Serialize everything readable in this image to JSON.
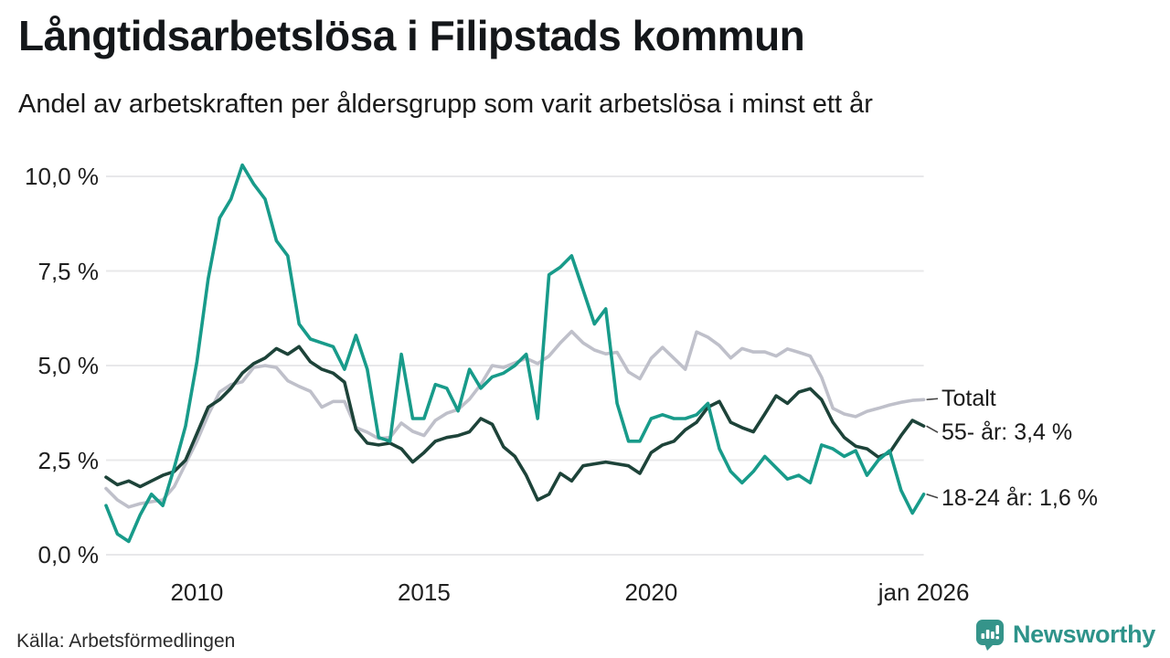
{
  "header": {
    "title": "Långtidsarbetslösa i Filipstads kommun",
    "subtitle": "Andel av arbetskraften per åldersgrupp som varit arbetslösa i minst ett år"
  },
  "footer": {
    "source": "Källa: Arbetsförmedlingen"
  },
  "branding": {
    "logo_text": "Newsworthy",
    "logo_color": "#35948a",
    "text_color": "#2e938a",
    "logo_icon": "bar-chart-speech-bubble-icon"
  },
  "chart_data": {
    "type": "line",
    "title": "Långtidsarbetslösa i Filipstads kommun",
    "subtitle": "Andel av arbetskraften per åldersgrupp som varit arbetslösa i minst ett år",
    "xlabel": "",
    "ylabel": "",
    "x_start_year": 2008,
    "x_step_years": 0.25,
    "x_end_year": 2026,
    "ylim": [
      0,
      10.5
    ],
    "grid": "horizontal",
    "grid_color": "#e8e8ea",
    "leader_color": "#444444",
    "legend_position": "end-of-line-labels",
    "y_ticks": [
      {
        "value": 0,
        "label": "0,0 %"
      },
      {
        "value": 2.5,
        "label": "2,5 %"
      },
      {
        "value": 5,
        "label": "5,0 %"
      },
      {
        "value": 7.5,
        "label": "7,5 %"
      },
      {
        "value": 10,
        "label": "10,0 %"
      }
    ],
    "x_ticks": [
      {
        "value": 2010,
        "label": "2010"
      },
      {
        "value": 2015,
        "label": "2015"
      },
      {
        "value": 2020,
        "label": "2020"
      },
      {
        "value": 2026,
        "label": "jan 2026"
      }
    ],
    "series": [
      {
        "name": "Totalt",
        "end_label": "Totalt",
        "end_value": 4.1,
        "color": "#bfc0ca",
        "values": [
          1.75,
          1.45,
          1.26,
          1.35,
          1.4,
          1.45,
          1.8,
          2.4,
          3.0,
          3.7,
          4.3,
          4.5,
          4.57,
          4.95,
          5.0,
          4.95,
          4.6,
          4.45,
          4.32,
          3.9,
          4.05,
          4.05,
          3.36,
          3.24,
          3.07,
          3.1,
          3.48,
          3.26,
          3.15,
          3.55,
          3.74,
          3.84,
          4.11,
          4.5,
          5.0,
          4.95,
          5.07,
          5.19,
          5.05,
          5.25,
          5.6,
          5.9,
          5.6,
          5.41,
          5.31,
          5.35,
          4.83,
          4.65,
          5.19,
          5.48,
          5.19,
          4.9,
          5.89,
          5.75,
          5.53,
          5.2,
          5.45,
          5.36,
          5.36,
          5.25,
          5.44,
          5.35,
          5.25,
          4.69,
          3.87,
          3.72,
          3.65,
          3.79,
          3.87,
          3.96,
          4.03,
          4.08,
          4.1
        ]
      },
      {
        "name": "55- år",
        "end_label": "55- år: 3,4 %",
        "end_value": 3.4,
        "color": "#1d4339",
        "values": [
          2.05,
          1.85,
          1.95,
          1.8,
          1.95,
          2.1,
          2.2,
          2.5,
          3.2,
          3.9,
          4.1,
          4.4,
          4.8,
          5.05,
          5.2,
          5.45,
          5.3,
          5.5,
          5.1,
          4.9,
          4.8,
          4.56,
          3.31,
          2.95,
          2.9,
          2.95,
          2.8,
          2.45,
          2.7,
          3.0,
          3.1,
          3.15,
          3.25,
          3.6,
          3.45,
          2.85,
          2.6,
          2.1,
          1.45,
          1.6,
          2.15,
          1.95,
          2.35,
          2.4,
          2.45,
          2.4,
          2.35,
          2.15,
          2.7,
          2.9,
          3.0,
          3.3,
          3.5,
          3.9,
          4.05,
          3.5,
          3.36,
          3.25,
          3.72,
          4.2,
          4.0,
          4.3,
          4.39,
          4.1,
          3.5,
          3.1,
          2.87,
          2.8,
          2.58,
          2.7,
          3.15,
          3.55,
          3.4
        ]
      },
      {
        "name": "18-24 år",
        "end_label": "18-24 år: 1,6 %",
        "end_value": 1.6,
        "color": "#189b8a",
        "values": [
          1.3,
          0.55,
          0.35,
          1.05,
          1.6,
          1.3,
          2.3,
          3.4,
          5.1,
          7.3,
          8.9,
          9.4,
          10.3,
          9.8,
          9.4,
          8.3,
          7.9,
          6.1,
          5.7,
          5.6,
          5.5,
          4.9,
          5.8,
          4.9,
          3.1,
          3.0,
          5.3,
          3.6,
          3.6,
          4.5,
          4.4,
          3.8,
          4.9,
          4.4,
          4.7,
          4.8,
          5.0,
          5.3,
          3.6,
          7.4,
          7.6,
          7.9,
          7.0,
          6.1,
          6.5,
          4.0,
          3.0,
          3.0,
          3.6,
          3.7,
          3.6,
          3.6,
          3.7,
          4.0,
          2.8,
          2.2,
          1.9,
          2.2,
          2.6,
          2.3,
          2.0,
          2.1,
          1.9,
          2.9,
          2.8,
          2.6,
          2.75,
          2.1,
          2.5,
          2.75,
          1.7,
          1.1,
          1.6
        ]
      }
    ]
  }
}
